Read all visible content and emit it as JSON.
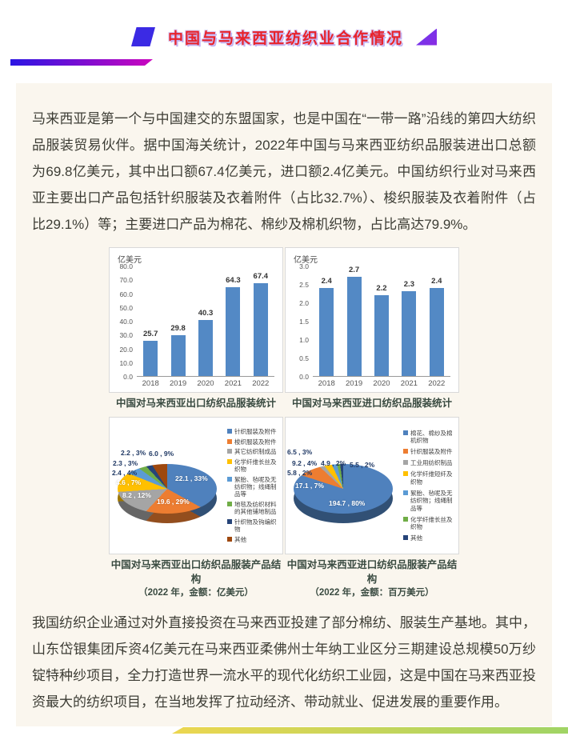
{
  "banner": {
    "title": "中国与马来西亚纺织业合作情况"
  },
  "paragraphs": {
    "intro": "马来西亚是第一个与中国建交的东盟国家，也是中国在“一带一路”沿线的第四大纺织品服装贸易伙伴。据中国海关统计，2022年中国与马来西亚纺织品服装进出口总额为69.8亿美元，其中出口额67.4亿美元，进口额2.4亿美元。中国纺织行业对马来西亚主要出口产品包括针织服装及衣着附件（占比32.7%）、梭织服装及衣着附件（占比29.1%）等；主要进口产品为棉花、棉纱及棉机织物，占比高达79.9%。",
    "outro": "我国纺织企业通过对外直接投资在马来西亚投建了部分棉纺、服装生产基地。其中，山东岱银集团斥资4亿美元在马来西亚柔佛州士年纳工业区分三期建设总规模50万纱锭特种纱项目，全力打造世界一流水平的现代化纺织工业园，这是中国在马来西亚投资最大的纺织项目，在当地发挥了拉动经济、带动就业、促进发展的重要作用。"
  },
  "chart_data": [
    {
      "type": "bar",
      "title": "中国对马来西亚出口纺织品服装统计",
      "ylabel": "亿美元",
      "categories": [
        "2018",
        "2019",
        "2020",
        "2021",
        "2022"
      ],
      "values": [
        25.7,
        29.8,
        40.3,
        64.3,
        67.4
      ],
      "ylim": [
        0,
        80
      ],
      "yticks": [
        80,
        70,
        60,
        50,
        40,
        30,
        20,
        10,
        0
      ],
      "ytick_labels": [
        "80.0",
        "70.0",
        "60.0",
        "50.0",
        "40.0",
        "30.0",
        "20.0",
        "10.0",
        "0.0"
      ],
      "bar_color": "#5389c5",
      "grid": false,
      "legend_position": "none"
    },
    {
      "type": "bar",
      "title": "中国对马来西亚进口纺织品服装统计",
      "ylabel": "亿美元",
      "categories": [
        "2018",
        "2019",
        "2020",
        "2021",
        "2022"
      ],
      "values": [
        2.4,
        2.7,
        2.2,
        2.3,
        2.4
      ],
      "ylim": [
        0,
        3
      ],
      "yticks": [
        3,
        2.5,
        2,
        1.5,
        1,
        0.5,
        0
      ],
      "ytick_labels": [
        "3.0",
        "2.5",
        "2.0",
        "1.5",
        "1.0",
        "0.5",
        "0.0"
      ],
      "bar_color": "#5389c5",
      "grid": false,
      "legend_position": "none"
    },
    {
      "type": "pie",
      "title": "中国对马来西亚出口纺织品服装产品结构",
      "subtitle": "（2022 年，金额：亿美元）",
      "unit": "亿美元",
      "legend_position": "right",
      "slices": [
        {
          "label": "针织服装及附件",
          "value": 22.1,
          "pct": 33,
          "color": "#4f81bd",
          "display": "22.1 , 33%",
          "inside": true,
          "label_pos": [
            80,
            67
          ]
        },
        {
          "label": "梭织服装及附件",
          "value": 19.6,
          "pct": 29,
          "color": "#ed7d31",
          "display": "19.6 , 29%",
          "inside": true,
          "label_pos": [
            57,
            96
          ]
        },
        {
          "label": "其它纺织制成品",
          "value": 8.2,
          "pct": 12,
          "color": "#a5a5a5",
          "display": "8.2 , 12%",
          "inside": true,
          "label_pos": [
            14,
            88
          ]
        },
        {
          "label": "化学纤维长丝及织物",
          "value": 4.6,
          "pct": 7,
          "color": "#ffc000",
          "display": "4.6 , 7%",
          "inside": true,
          "label_pos": [
            6,
            72
          ]
        },
        {
          "label": "絮胎、毡呢及无纺织物；线绳制品等",
          "value": 2.4,
          "pct": 4,
          "color": "#5b9bd5",
          "display": "2.4 , 4%",
          "inside": false,
          "label_pos": [
            1,
            60
          ]
        },
        {
          "label": "地毯及纺织材料的其他铺地制品",
          "value": 2.3,
          "pct": 3,
          "color": "#70ad47",
          "display": "2.3 , 3%",
          "inside": false,
          "label_pos": [
            2,
            48
          ]
        },
        {
          "label": "针织物及钩编织物",
          "value": 2.2,
          "pct": 3,
          "color": "#264478",
          "display": "2.2 , 3%",
          "inside": false,
          "label_pos": [
            12,
            35
          ]
        },
        {
          "label": "其他",
          "value": 6.0,
          "pct": 9,
          "color": "#9e480e",
          "display": "6.0 , 9%",
          "inside": false,
          "label_pos": [
            47,
            36
          ]
        }
      ]
    },
    {
      "type": "pie",
      "title": "中国对马来西亚进口纺织品服装产品结构",
      "subtitle": "（2022 年，金额：百万美元）",
      "unit": "百万美元",
      "legend_position": "right",
      "slices": [
        {
          "label": "棉花、棉纱及棉机织物",
          "value": 194.7,
          "pct": 80,
          "color": "#4f81bd",
          "display": "194.7 , 80%",
          "inside": true,
          "label_pos": [
            52,
            98
          ]
        },
        {
          "label": "针织服装及附件",
          "value": 17.1,
          "pct": 7,
          "color": "#ed7d31",
          "display": "17.1 , 7%",
          "inside": true,
          "label_pos": [
            10,
            76
          ]
        },
        {
          "label": "工业用纺织制品",
          "value": 5.8,
          "pct": 2,
          "color": "#a5a5a5",
          "display": "5.8 , 2%",
          "inside": false,
          "label_pos": [
            0,
            60
          ]
        },
        {
          "label": "化学纤维短纤及织物",
          "value": 9.2,
          "pct": 4,
          "color": "#ffc000",
          "display": "9.2 , 4%",
          "inside": false,
          "label_pos": [
            6,
            48
          ]
        },
        {
          "label": "絮胎、毡呢及无纺织物；线绳制品等",
          "value": 6.5,
          "pct": 3,
          "color": "#5b9bd5",
          "display": "6.5 , 3%",
          "inside": false,
          "label_pos": [
            0,
            34
          ]
        },
        {
          "label": "化学纤维长丝及织物",
          "value": 4.9,
          "pct": 2,
          "color": "#70ad47",
          "display": "4.9 , 2%",
          "inside": false,
          "label_pos": [
            42,
            48
          ]
        },
        {
          "label": "其他",
          "value": 5.5,
          "pct": 2,
          "color": "#264478",
          "display": "5.5 , 2%",
          "inside": false,
          "label_pos": [
            78,
            50
          ]
        }
      ]
    }
  ],
  "colors": {
    "content_background": "#faf6ee",
    "title_red": "#e8232b",
    "top_bar_gradient": [
      "#2b15e3",
      "#cb06be"
    ],
    "bottom_bar_gradient": [
      "#ecd650",
      "#a0d465"
    ],
    "bar_blue": "#5389c5"
  }
}
